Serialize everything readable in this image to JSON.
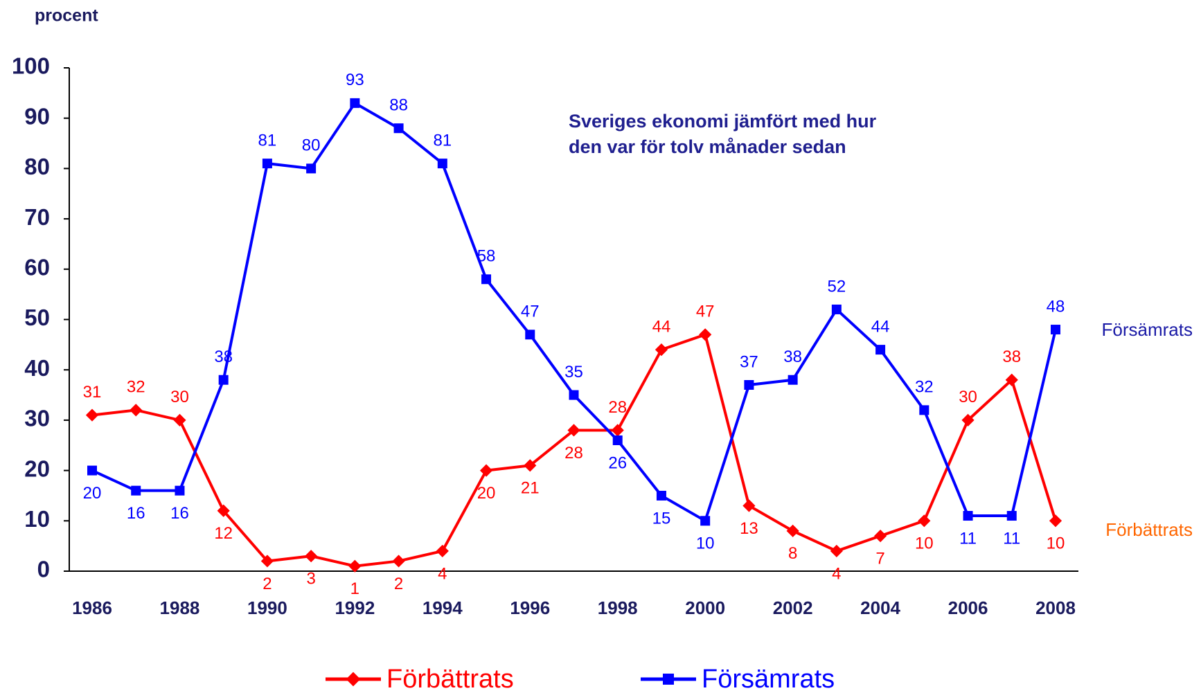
{
  "chart_data": {
    "type": "line",
    "title": [
      "Sveriges ekonomi jämfört med hur",
      "den var för tolv månader sedan"
    ],
    "y_label": "procent",
    "x": [
      1986,
      1987,
      1988,
      1989,
      1990,
      1991,
      1992,
      1993,
      1994,
      1995,
      1996,
      1997,
      1998,
      1999,
      2000,
      2001,
      2002,
      2003,
      2004,
      2005,
      2006,
      2007,
      2008
    ],
    "xlim": [
      1986,
      2008
    ],
    "xticks": [
      1986,
      1988,
      1990,
      1992,
      1994,
      1996,
      1998,
      2000,
      2002,
      2004,
      2006,
      2008
    ],
    "ylim": [
      0,
      100
    ],
    "yticks": [
      0,
      10,
      20,
      30,
      40,
      50,
      60,
      70,
      80,
      90,
      100
    ],
    "grid": false,
    "legend": "bottom",
    "series": [
      {
        "name": "Förbättrats",
        "color": "#ff0000",
        "marker": "diamond",
        "end_label_color": "#ff6600",
        "values": [
          31,
          32,
          30,
          12,
          2,
          3,
          1,
          2,
          4,
          20,
          21,
          28,
          28,
          44,
          47,
          13,
          8,
          4,
          7,
          10,
          30,
          38,
          10
        ]
      },
      {
        "name": "Försämrats",
        "color": "#0000ff",
        "marker": "square",
        "end_label_color": "#1a1aa6",
        "values": [
          20,
          16,
          16,
          38,
          81,
          80,
          93,
          88,
          81,
          58,
          47,
          35,
          26,
          15,
          10,
          37,
          38,
          52,
          44,
          32,
          11,
          11,
          48
        ]
      }
    ]
  }
}
